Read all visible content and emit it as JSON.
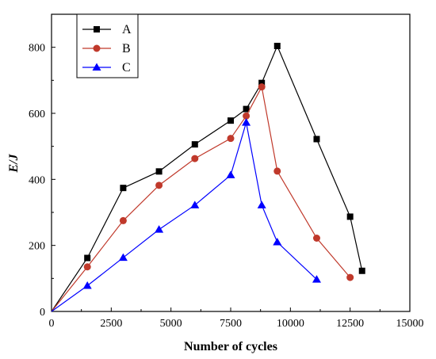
{
  "chart_data": {
    "type": "line",
    "xlabel": "Number of cycles",
    "ylabel": "E/J",
    "xlim": [
      0,
      15000
    ],
    "ylim": [
      0,
      900
    ],
    "xticks": [
      0,
      2500,
      5000,
      7500,
      10000,
      12500,
      15000
    ],
    "yticks": [
      0,
      200,
      400,
      600,
      800
    ],
    "grid": false,
    "legend_position": "top-left",
    "series": [
      {
        "name": "A",
        "color": "#000000",
        "marker": "square",
        "points": [
          [
            0,
            0
          ],
          [
            1500,
            162
          ],
          [
            3000,
            374
          ],
          [
            4500,
            424
          ],
          [
            6000,
            506
          ],
          [
            7500,
            578
          ],
          [
            8150,
            613
          ],
          [
            8800,
            692
          ],
          [
            9450,
            804
          ],
          [
            11100,
            522
          ],
          [
            12500,
            287
          ],
          [
            13000,
            123
          ]
        ]
      },
      {
        "name": "B",
        "color": "#c0392b",
        "marker": "circle",
        "points": [
          [
            0,
            0
          ],
          [
            1500,
            135
          ],
          [
            3000,
            275
          ],
          [
            4500,
            382
          ],
          [
            6000,
            463
          ],
          [
            7500,
            524
          ],
          [
            8150,
            592
          ],
          [
            8800,
            680
          ],
          [
            9450,
            425
          ],
          [
            11100,
            222
          ],
          [
            12500,
            103
          ]
        ]
      },
      {
        "name": "C",
        "color": "#0000ff",
        "marker": "triangle",
        "points": [
          [
            0,
            0
          ],
          [
            1500,
            78
          ],
          [
            3000,
            163
          ],
          [
            4500,
            248
          ],
          [
            6000,
            322
          ],
          [
            7500,
            413
          ],
          [
            8150,
            572
          ],
          [
            8800,
            322
          ],
          [
            9450,
            210
          ],
          [
            11100,
            97
          ]
        ]
      }
    ]
  }
}
